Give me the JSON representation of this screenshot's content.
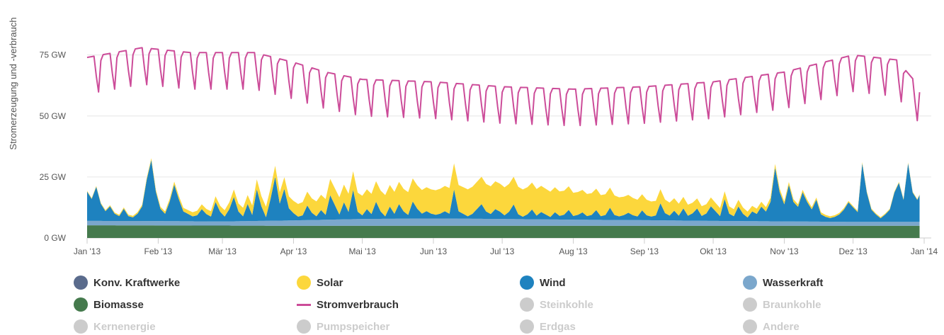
{
  "chart_data": {
    "type": "area",
    "ylabel": "Stromerzeugung und -verbrauch",
    "ylim": [
      0,
      90
    ],
    "yunit": "GW",
    "yticks": [
      {
        "value": 0,
        "label": "0 GW"
      },
      {
        "value": 25,
        "label": "25 GW"
      },
      {
        "value": 50,
        "label": "50 GW"
      },
      {
        "value": 75,
        "label": "75 GW"
      }
    ],
    "grid": true,
    "legend_position": "bottom",
    "x_start": "2013-01-01",
    "x_end": "2014-01-01",
    "xticks": [
      {
        "date": "2013-01-01",
        "label": "Jan '13"
      },
      {
        "date": "2013-02-01",
        "label": "Feb '13"
      },
      {
        "date": "2013-03-01",
        "label": "Mär '13"
      },
      {
        "date": "2013-04-01",
        "label": "Apr '13"
      },
      {
        "date": "2013-05-01",
        "label": "Mai '13"
      },
      {
        "date": "2013-06-01",
        "label": "Jun '13"
      },
      {
        "date": "2013-07-01",
        "label": "Jul '13"
      },
      {
        "date": "2013-08-01",
        "label": "Aug '13"
      },
      {
        "date": "2013-09-01",
        "label": "Sep '13"
      },
      {
        "date": "2013-10-01",
        "label": "Okt '13"
      },
      {
        "date": "2013-11-01",
        "label": "Nov '13"
      },
      {
        "date": "2013-12-01",
        "label": "Dez '13"
      },
      {
        "date": "2014-01-01",
        "label": "Jan '14"
      }
    ],
    "series": [
      {
        "name": "Biomasse",
        "type": "stacked-area",
        "color": "#457a4d",
        "points": [
          [
            "2013-01-01",
            5.2
          ],
          [
            "2013-04-01",
            5.0
          ],
          [
            "2013-07-01",
            5.0
          ],
          [
            "2013-10-01",
            5.0
          ],
          [
            "2013-12-30",
            5.0
          ]
        ]
      },
      {
        "name": "Wasserkraft",
        "type": "stacked-area",
        "color": "#7ba7cc",
        "points": [
          [
            "2013-01-01",
            1.8
          ],
          [
            "2013-02-01",
            1.8
          ],
          [
            "2013-03-01",
            1.7
          ],
          [
            "2013-04-01",
            2.2
          ],
          [
            "2013-05-01",
            2.8
          ],
          [
            "2013-06-01",
            3.0
          ],
          [
            "2013-07-01",
            2.8
          ],
          [
            "2013-08-01",
            2.5
          ],
          [
            "2013-09-01",
            2.3
          ],
          [
            "2013-10-01",
            2.0
          ],
          [
            "2013-11-01",
            1.8
          ],
          [
            "2013-12-01",
            1.6
          ],
          [
            "2013-12-30",
            1.6
          ]
        ]
      },
      {
        "name": "Wind",
        "type": "stacked-area",
        "color": "#1e82bf",
        "points": [
          [
            "2013-01-01",
            12
          ],
          [
            "2013-01-03",
            9
          ],
          [
            "2013-01-05",
            14
          ],
          [
            "2013-01-07",
            7
          ],
          [
            "2013-01-09",
            4
          ],
          [
            "2013-01-11",
            6
          ],
          [
            "2013-01-13",
            3
          ],
          [
            "2013-01-15",
            2
          ],
          [
            "2013-01-17",
            5
          ],
          [
            "2013-01-19",
            2
          ],
          [
            "2013-01-21",
            1.5
          ],
          [
            "2013-01-23",
            3
          ],
          [
            "2013-01-25",
            6
          ],
          [
            "2013-01-27",
            17
          ],
          [
            "2013-01-29",
            25
          ],
          [
            "2013-01-31",
            12
          ],
          [
            "2013-02-02",
            5
          ],
          [
            "2013-02-04",
            3
          ],
          [
            "2013-02-06",
            8
          ],
          [
            "2013-02-08",
            15
          ],
          [
            "2013-02-10",
            9
          ],
          [
            "2013-02-12",
            4
          ],
          [
            "2013-02-14",
            3
          ],
          [
            "2013-02-16",
            2
          ],
          [
            "2013-02-18",
            2.5
          ],
          [
            "2013-02-20",
            5
          ],
          [
            "2013-02-22",
            3
          ],
          [
            "2013-02-24",
            2
          ],
          [
            "2013-02-26",
            8
          ],
          [
            "2013-02-28",
            4
          ],
          [
            "2013-03-02",
            2
          ],
          [
            "2013-03-04",
            5
          ],
          [
            "2013-03-06",
            10
          ],
          [
            "2013-03-08",
            4
          ],
          [
            "2013-03-10",
            2
          ],
          [
            "2013-03-12",
            7
          ],
          [
            "2013-03-14",
            2.5
          ],
          [
            "2013-03-16",
            13
          ],
          [
            "2013-03-18",
            6
          ],
          [
            "2013-03-20",
            1.5
          ],
          [
            "2013-03-22",
            9
          ],
          [
            "2013-03-24",
            18
          ],
          [
            "2013-03-26",
            7
          ],
          [
            "2013-03-28",
            13
          ],
          [
            "2013-03-30",
            5
          ],
          [
            "2013-04-01",
            3
          ],
          [
            "2013-04-03",
            1.5
          ],
          [
            "2013-04-05",
            2
          ],
          [
            "2013-04-07",
            6
          ],
          [
            "2013-04-09",
            3
          ],
          [
            "2013-04-11",
            1.5
          ],
          [
            "2013-04-13",
            4
          ],
          [
            "2013-04-15",
            2
          ],
          [
            "2013-04-17",
            10
          ],
          [
            "2013-04-19",
            6
          ],
          [
            "2013-04-21",
            2
          ],
          [
            "2013-04-23",
            7
          ],
          [
            "2013-04-25",
            3
          ],
          [
            "2013-04-27",
            12
          ],
          [
            "2013-04-29",
            3
          ],
          [
            "2013-05-01",
            1.5
          ],
          [
            "2013-05-03",
            4
          ],
          [
            "2013-05-05",
            2
          ],
          [
            "2013-05-07",
            7
          ],
          [
            "2013-05-09",
            3
          ],
          [
            "2013-05-11",
            1
          ],
          [
            "2013-05-13",
            5
          ],
          [
            "2013-05-15",
            2
          ],
          [
            "2013-05-17",
            6
          ],
          [
            "2013-05-19",
            3
          ],
          [
            "2013-05-21",
            1.5
          ],
          [
            "2013-05-23",
            7
          ],
          [
            "2013-05-25",
            4
          ],
          [
            "2013-05-27",
            2
          ],
          [
            "2013-05-29",
            3
          ],
          [
            "2013-05-31",
            2
          ],
          [
            "2013-06-02",
            1.5
          ],
          [
            "2013-06-04",
            2
          ],
          [
            "2013-06-06",
            3
          ],
          [
            "2013-06-08",
            2
          ],
          [
            "2013-06-10",
            12
          ],
          [
            "2013-06-12",
            3
          ],
          [
            "2013-06-14",
            2
          ],
          [
            "2013-06-16",
            1
          ],
          [
            "2013-06-18",
            2
          ],
          [
            "2013-06-20",
            4
          ],
          [
            "2013-06-22",
            6
          ],
          [
            "2013-06-24",
            3
          ],
          [
            "2013-06-26",
            2
          ],
          [
            "2013-06-28",
            4
          ],
          [
            "2013-06-30",
            3
          ],
          [
            "2013-07-02",
            1.5
          ],
          [
            "2013-07-04",
            3
          ],
          [
            "2013-07-06",
            6
          ],
          [
            "2013-07-08",
            2
          ],
          [
            "2013-07-10",
            1
          ],
          [
            "2013-07-12",
            2
          ],
          [
            "2013-07-14",
            4
          ],
          [
            "2013-07-16",
            1.5
          ],
          [
            "2013-07-18",
            3
          ],
          [
            "2013-07-20",
            2
          ],
          [
            "2013-07-22",
            1
          ],
          [
            "2013-07-24",
            3
          ],
          [
            "2013-07-26",
            1.5
          ],
          [
            "2013-07-28",
            2
          ],
          [
            "2013-07-30",
            4
          ],
          [
            "2013-08-01",
            1.5
          ],
          [
            "2013-08-03",
            2
          ],
          [
            "2013-08-05",
            3
          ],
          [
            "2013-08-07",
            1.5
          ],
          [
            "2013-08-09",
            2
          ],
          [
            "2013-08-11",
            4
          ],
          [
            "2013-08-13",
            1.5
          ],
          [
            "2013-08-15",
            2
          ],
          [
            "2013-08-17",
            5
          ],
          [
            "2013-08-19",
            2
          ],
          [
            "2013-08-21",
            1.5
          ],
          [
            "2013-08-23",
            2
          ],
          [
            "2013-08-25",
            3
          ],
          [
            "2013-08-27",
            2
          ],
          [
            "2013-08-29",
            1.5
          ],
          [
            "2013-08-31",
            4
          ],
          [
            "2013-09-02",
            2
          ],
          [
            "2013-09-04",
            1.5
          ],
          [
            "2013-09-06",
            2
          ],
          [
            "2013-09-08",
            7
          ],
          [
            "2013-09-10",
            3
          ],
          [
            "2013-09-12",
            2
          ],
          [
            "2013-09-14",
            4
          ],
          [
            "2013-09-16",
            2
          ],
          [
            "2013-09-18",
            5
          ],
          [
            "2013-09-20",
            2
          ],
          [
            "2013-09-22",
            3
          ],
          [
            "2013-09-24",
            5
          ],
          [
            "2013-09-26",
            2
          ],
          [
            "2013-09-28",
            3
          ],
          [
            "2013-09-30",
            6
          ],
          [
            "2013-10-02",
            4
          ],
          [
            "2013-10-04",
            2
          ],
          [
            "2013-10-06",
            9
          ],
          [
            "2013-10-08",
            3
          ],
          [
            "2013-10-10",
            2
          ],
          [
            "2013-10-12",
            6
          ],
          [
            "2013-10-14",
            3
          ],
          [
            "2013-10-16",
            1.5
          ],
          [
            "2013-10-18",
            4
          ],
          [
            "2013-10-20",
            3
          ],
          [
            "2013-10-22",
            6
          ],
          [
            "2013-10-24",
            4
          ],
          [
            "2013-10-26",
            8
          ],
          [
            "2013-10-28",
            22
          ],
          [
            "2013-10-30",
            12
          ],
          [
            "2013-11-01",
            7
          ],
          [
            "2013-11-03",
            15
          ],
          [
            "2013-11-05",
            8
          ],
          [
            "2013-11-07",
            6
          ],
          [
            "2013-11-09",
            12
          ],
          [
            "2013-11-11",
            8
          ],
          [
            "2013-11-13",
            5
          ],
          [
            "2013-11-15",
            9
          ],
          [
            "2013-11-17",
            3
          ],
          [
            "2013-11-19",
            2
          ],
          [
            "2013-11-21",
            1.5
          ],
          [
            "2013-11-23",
            2
          ],
          [
            "2013-11-25",
            3
          ],
          [
            "2013-11-27",
            5
          ],
          [
            "2013-11-29",
            8
          ],
          [
            "2013-12-01",
            6
          ],
          [
            "2013-12-03",
            4
          ],
          [
            "2013-12-05",
            24
          ],
          [
            "2013-12-07",
            12
          ],
          [
            "2013-12-09",
            5
          ],
          [
            "2013-12-11",
            3
          ],
          [
            "2013-12-13",
            1.5
          ],
          [
            "2013-12-15",
            3
          ],
          [
            "2013-12-17",
            5
          ],
          [
            "2013-12-19",
            12
          ],
          [
            "2013-12-21",
            16
          ],
          [
            "2013-12-23",
            9
          ],
          [
            "2013-12-25",
            24
          ],
          [
            "2013-12-27",
            12
          ],
          [
            "2013-12-29",
            9
          ],
          [
            "2013-12-30",
            11
          ]
        ]
      },
      {
        "name": "Solar",
        "type": "stacked-area",
        "color": "#fcd73c",
        "points": [
          [
            "2013-01-01",
            0.3
          ],
          [
            "2013-02-01",
            0.8
          ],
          [
            "2013-03-01",
            2.5
          ],
          [
            "2013-03-15",
            4
          ],
          [
            "2013-04-01",
            5
          ],
          [
            "2013-04-15",
            6.5
          ],
          [
            "2013-05-01",
            8
          ],
          [
            "2013-05-15",
            9
          ],
          [
            "2013-06-01",
            10
          ],
          [
            "2013-06-15",
            11
          ],
          [
            "2013-07-01",
            11.5
          ],
          [
            "2013-07-15",
            11
          ],
          [
            "2013-08-01",
            9.5
          ],
          [
            "2013-08-15",
            8.5
          ],
          [
            "2013-09-01",
            6.5
          ],
          [
            "2013-09-15",
            5
          ],
          [
            "2013-10-01",
            3.5
          ],
          [
            "2013-10-15",
            2.5
          ],
          [
            "2013-11-01",
            1.2
          ],
          [
            "2013-12-01",
            0.5
          ],
          [
            "2013-12-30",
            0.3
          ]
        ]
      },
      {
        "name": "Stromverbrauch",
        "type": "line",
        "color": "#cc4c99",
        "level": [
          [
            "2013-01-01",
            74
          ],
          [
            "2013-01-25",
            78
          ],
          [
            "2013-02-15",
            76
          ],
          [
            "2013-03-15",
            76
          ],
          [
            "2013-04-01",
            72
          ],
          [
            "2013-04-15",
            68
          ],
          [
            "2013-05-01",
            65
          ],
          [
            "2013-06-01",
            64
          ],
          [
            "2013-07-01",
            62
          ],
          [
            "2013-08-01",
            61
          ],
          [
            "2013-09-01",
            62
          ],
          [
            "2013-10-01",
            64
          ],
          [
            "2013-11-01",
            68
          ],
          [
            "2013-12-01",
            75
          ],
          [
            "2013-12-20",
            73
          ],
          [
            "2013-12-30",
            62
          ]
        ],
        "weekend_dip": 15
      }
    ]
  },
  "legend": [
    {
      "name": "Konv. Kraftwerke",
      "color": "#5a6b8c",
      "enabled": true
    },
    {
      "name": "Solar",
      "color": "#fcd73c",
      "enabled": true
    },
    {
      "name": "Wind",
      "color": "#1e82bf",
      "enabled": true
    },
    {
      "name": "Wasserkraft",
      "color": "#7ba7cc",
      "enabled": true
    },
    {
      "name": "Biomasse",
      "color": "#457a4d",
      "enabled": true
    },
    {
      "name": "Stromverbrauch",
      "color": "#cc4c99",
      "enabled": true,
      "line": true
    },
    {
      "name": "Steinkohle",
      "color": "#cccccc",
      "enabled": false
    },
    {
      "name": "Braunkohle",
      "color": "#cccccc",
      "enabled": false
    },
    {
      "name": "Kernenergie",
      "color": "#cccccc",
      "enabled": false
    },
    {
      "name": "Pumpspeicher",
      "color": "#cccccc",
      "enabled": false
    },
    {
      "name": "Erdgas",
      "color": "#cccccc",
      "enabled": false
    },
    {
      "name": "Andere",
      "color": "#cccccc",
      "enabled": false
    }
  ]
}
